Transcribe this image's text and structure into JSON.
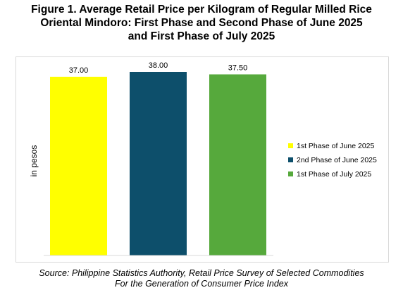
{
  "title": {
    "line1": "Figure 1. Average Retail Price per Kilogram of Regular Milled Rice",
    "line2": "Oriental Mindoro: First Phase and Second Phase of June 2025",
    "line3": "and First Phase of July 2025"
  },
  "source": {
    "line1": "Source: Philippine Statistics Authority, Retail Price Survey of Selected Commodities",
    "line2": "For the Generation of Consumer Price Index"
  },
  "chart_data": {
    "type": "bar",
    "ylabel": "in pesos",
    "ylim": [
      0,
      38
    ],
    "grid": false,
    "legend_position": "right",
    "categories": [
      "1st Phase of June 2025",
      "2nd Phase of June 2025",
      "1st Phase of July 2025"
    ],
    "values": [
      37.0,
      38.0,
      37.5
    ],
    "data_labels": [
      "37.00",
      "38.00",
      "37.50"
    ],
    "colors": [
      "#ffff00",
      "#0d4f6b",
      "#56a93c"
    ]
  }
}
